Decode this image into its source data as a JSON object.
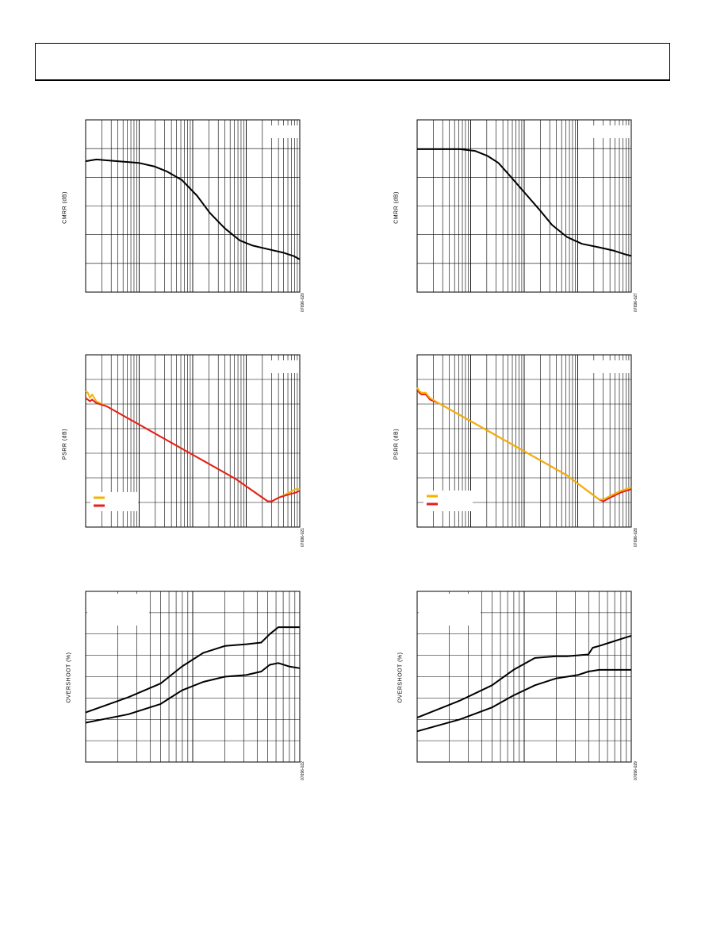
{
  "charts": [
    {
      "id": "c1",
      "ylabel": "CMRR (dB)",
      "fig_id": "07696-020"
    },
    {
      "id": "c2",
      "ylabel": "CMRR (dB)",
      "fig_id": "07696-027"
    },
    {
      "id": "c3",
      "ylabel": "PSRR (dB)",
      "fig_id": "07696-021"
    },
    {
      "id": "c4",
      "ylabel": "PSRR (dB)",
      "fig_id": "07696-028"
    },
    {
      "id": "c5",
      "ylabel": "OVERSHOOT (%)",
      "fig_id": "07696-022"
    },
    {
      "id": "c6",
      "ylabel": "OVERSHOOT (%)",
      "fig_id": "07696-029"
    }
  ],
  "chart_data": [
    {
      "type": "line",
      "xscale": "log",
      "decades": 4,
      "hgrid": 6,
      "grid": true,
      "xlim": [
        0,
        1
      ],
      "ylim": [
        0,
        1
      ],
      "series": [
        {
          "color": "#000000",
          "x": [
            0,
            0.05,
            0.15,
            0.25,
            0.32,
            0.38,
            0.45,
            0.52,
            0.58,
            0.65,
            0.72,
            0.78,
            0.85,
            0.92,
            0.97,
            1.0
          ],
          "y": [
            0.76,
            0.77,
            0.76,
            0.75,
            0.73,
            0.7,
            0.65,
            0.56,
            0.46,
            0.37,
            0.3,
            0.27,
            0.25,
            0.23,
            0.21,
            0.19
          ]
        }
      ]
    },
    {
      "type": "line",
      "xscale": "log",
      "decades": 4,
      "hgrid": 6,
      "grid": true,
      "xlim": [
        0,
        1
      ],
      "ylim": [
        0,
        1
      ],
      "series": [
        {
          "color": "#000000",
          "x": [
            0,
            0.1,
            0.2,
            0.27,
            0.33,
            0.38,
            0.43,
            0.5,
            0.57,
            0.63,
            0.7,
            0.77,
            0.85,
            0.92,
            0.97,
            1.0
          ],
          "y": [
            0.83,
            0.83,
            0.83,
            0.82,
            0.79,
            0.75,
            0.68,
            0.58,
            0.48,
            0.39,
            0.32,
            0.28,
            0.26,
            0.24,
            0.22,
            0.21
          ]
        }
      ]
    },
    {
      "type": "line",
      "xscale": "log",
      "decades": 4,
      "hgrid": 7,
      "grid": true,
      "xlim": [
        0,
        1
      ],
      "ylim": [
        0,
        1
      ],
      "series": [
        {
          "color": "#f2b400",
          "x": [
            0,
            0.01,
            0.02,
            0.03,
            0.05,
            0.1,
            0.3,
            0.5,
            0.7,
            0.85,
            0.87,
            0.9,
            0.95,
            0.98,
            1.0
          ],
          "y": [
            0.79,
            0.78,
            0.75,
            0.77,
            0.73,
            0.7,
            0.56,
            0.42,
            0.28,
            0.15,
            0.15,
            0.17,
            0.2,
            0.22,
            0.22
          ]
        },
        {
          "color": "#e41e1e",
          "x": [
            0,
            0.01,
            0.02,
            0.03,
            0.05,
            0.1,
            0.3,
            0.5,
            0.7,
            0.85,
            0.87,
            0.9,
            0.95,
            0.98,
            1.0
          ],
          "y": [
            0.75,
            0.74,
            0.73,
            0.74,
            0.72,
            0.7,
            0.56,
            0.42,
            0.28,
            0.15,
            0.15,
            0.17,
            0.19,
            0.2,
            0.21
          ]
        }
      ]
    },
    {
      "type": "line",
      "xscale": "log",
      "decades": 4,
      "hgrid": 7,
      "grid": true,
      "xlim": [
        0,
        1
      ],
      "ylim": [
        0,
        1
      ],
      "series": [
        {
          "color": "#e41e1e",
          "x": [
            0,
            0.01,
            0.02,
            0.04,
            0.06,
            0.1,
            0.3,
            0.5,
            0.7,
            0.85,
            0.87,
            0.9,
            0.95,
            1.0
          ],
          "y": [
            0.8,
            0.78,
            0.77,
            0.77,
            0.74,
            0.72,
            0.58,
            0.44,
            0.3,
            0.16,
            0.15,
            0.17,
            0.2,
            0.22
          ]
        },
        {
          "color": "#f2b400",
          "x": [
            0,
            0.01,
            0.02,
            0.04,
            0.06,
            0.1,
            0.3,
            0.5,
            0.7,
            0.85,
            0.87,
            0.9,
            0.95,
            1.0
          ],
          "y": [
            0.81,
            0.79,
            0.78,
            0.78,
            0.75,
            0.72,
            0.58,
            0.44,
            0.3,
            0.16,
            0.16,
            0.18,
            0.21,
            0.23
          ]
        }
      ]
    },
    {
      "type": "line",
      "xscale": "log",
      "decades": 2,
      "hgrid": 8,
      "grid": true,
      "xlim": [
        0,
        1
      ],
      "ylim": [
        0,
        1
      ],
      "series": [
        {
          "color": "#000000",
          "x": [
            0,
            0.2,
            0.35,
            0.45,
            0.55,
            0.65,
            0.75,
            0.82,
            0.86,
            0.9,
            0.95,
            1.0
          ],
          "y": [
            0.29,
            0.38,
            0.46,
            0.56,
            0.64,
            0.68,
            0.69,
            0.7,
            0.75,
            0.79,
            0.79,
            0.79
          ]
        },
        {
          "color": "#000000",
          "x": [
            0,
            0.2,
            0.35,
            0.45,
            0.55,
            0.65,
            0.75,
            0.82,
            0.86,
            0.9,
            0.95,
            1.0
          ],
          "y": [
            0.23,
            0.28,
            0.34,
            0.42,
            0.47,
            0.5,
            0.51,
            0.53,
            0.57,
            0.58,
            0.56,
            0.55
          ]
        }
      ]
    },
    {
      "type": "line",
      "xscale": "log",
      "decades": 2,
      "hgrid": 8,
      "grid": true,
      "xlim": [
        0,
        1
      ],
      "ylim": [
        0,
        1
      ],
      "series": [
        {
          "color": "#000000",
          "x": [
            0,
            0.2,
            0.35,
            0.45,
            0.55,
            0.65,
            0.7,
            0.8,
            0.82,
            0.85,
            0.9,
            0.95,
            1.0
          ],
          "y": [
            0.26,
            0.36,
            0.45,
            0.54,
            0.61,
            0.62,
            0.62,
            0.63,
            0.67,
            0.68,
            0.7,
            0.72,
            0.74
          ]
        },
        {
          "color": "#000000",
          "x": [
            0,
            0.2,
            0.35,
            0.45,
            0.55,
            0.65,
            0.75,
            0.8,
            0.85,
            0.9,
            0.95,
            1.0
          ],
          "y": [
            0.18,
            0.25,
            0.32,
            0.39,
            0.45,
            0.49,
            0.51,
            0.53,
            0.54,
            0.54,
            0.54,
            0.54
          ]
        }
      ]
    }
  ]
}
